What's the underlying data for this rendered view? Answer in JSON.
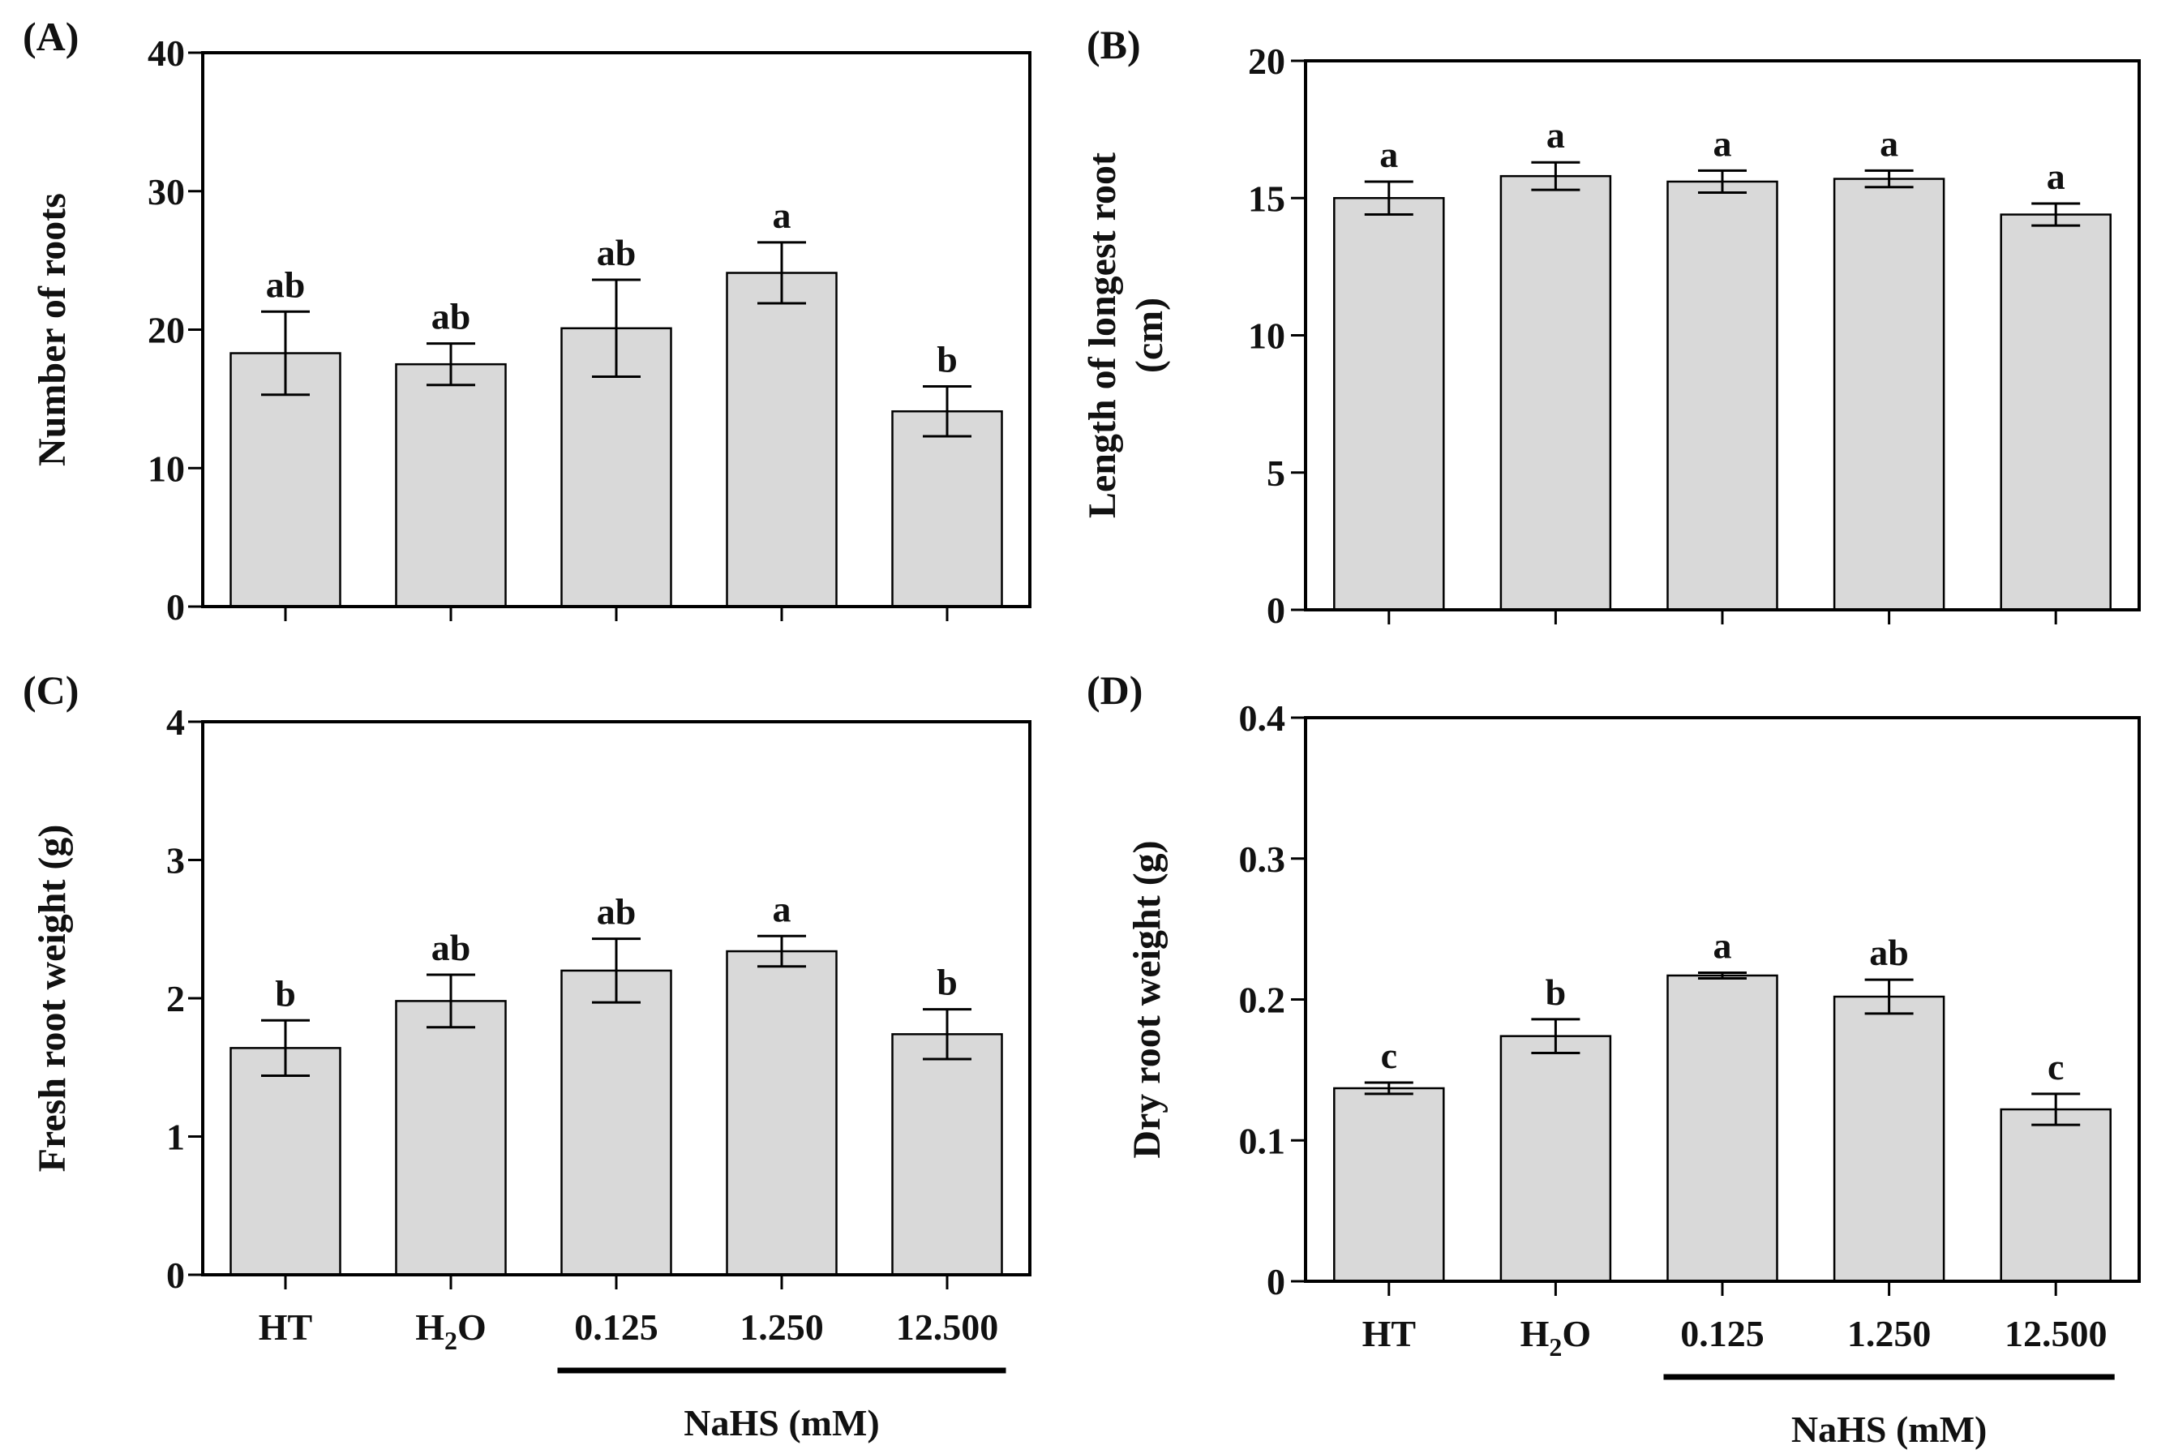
{
  "colors": {
    "bar_fill": "#d9d9d9",
    "axis": "#000000",
    "text": "#111111"
  },
  "chart_data": [
    {
      "type": "bar",
      "panel_label": "(A)",
      "ylabel": "Number of roots",
      "categories": [
        "HT",
        "H2O",
        "0.125",
        "1.250",
        "12.500"
      ],
      "values": [
        18.3,
        17.5,
        20.1,
        24.1,
        14.1
      ],
      "errors": [
        3.0,
        1.5,
        3.5,
        2.2,
        1.8
      ],
      "significance": [
        "ab",
        "ab",
        "ab",
        "a",
        "b"
      ],
      "ylim": [
        0,
        40
      ],
      "yticks": [
        "0",
        "10",
        "20",
        "30",
        "40"
      ],
      "show_category_labels": false
    },
    {
      "type": "bar",
      "panel_label": "(B)",
      "ylabel": "Length of longest root",
      "ylabel_unit": "(cm)",
      "categories": [
        "HT",
        "H2O",
        "0.125",
        "1.250",
        "12.500"
      ],
      "values": [
        15.0,
        15.8,
        15.6,
        15.7,
        14.4
      ],
      "errors": [
        0.6,
        0.5,
        0.4,
        0.3,
        0.4
      ],
      "significance": [
        "a",
        "a",
        "a",
        "a",
        "a"
      ],
      "ylim": [
        0,
        20
      ],
      "yticks": [
        "0",
        "5",
        "10",
        "15",
        "20"
      ],
      "show_category_labels": false
    },
    {
      "type": "bar",
      "panel_label": "(C)",
      "ylabel": "Fresh root weight (g)",
      "categories": [
        "HT",
        "H2O",
        "0.125",
        "1.250",
        "12.500"
      ],
      "values": [
        1.64,
        1.98,
        2.2,
        2.34,
        1.74
      ],
      "errors": [
        0.2,
        0.19,
        0.23,
        0.11,
        0.18
      ],
      "significance": [
        "b",
        "ab",
        "ab",
        "a",
        "b"
      ],
      "ylim": [
        0,
        4
      ],
      "yticks": [
        "0",
        "1",
        "2",
        "3",
        "4"
      ],
      "show_category_labels": true,
      "group_label": "NaHS (mM)"
    },
    {
      "type": "bar",
      "panel_label": "(D)",
      "ylabel": "Dry root weight (g)",
      "categories": [
        "HT",
        "H2O",
        "0.125",
        "1.250",
        "12.500"
      ],
      "values": [
        0.137,
        0.174,
        0.217,
        0.202,
        0.122
      ],
      "errors": [
        0.004,
        0.012,
        0.002,
        0.012,
        0.011
      ],
      "significance": [
        "c",
        "b",
        "a",
        "ab",
        "c"
      ],
      "ylim": [
        0,
        0.4
      ],
      "yticks": [
        "0",
        "0.1",
        "0.2",
        "0.3",
        "0.4"
      ],
      "show_category_labels": true,
      "group_label": "NaHS (mM)"
    }
  ]
}
